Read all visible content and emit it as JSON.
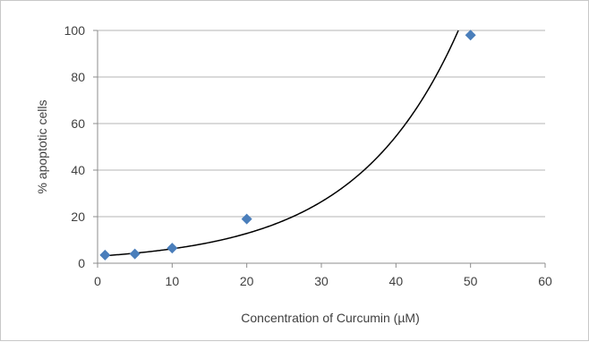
{
  "chart_data": {
    "type": "scatter",
    "title": "",
    "xlabel": "Concentration of Curcumin (µM)",
    "ylabel": "% apoptotic cells",
    "xlim": [
      0,
      60
    ],
    "ylim": [
      0,
      100
    ],
    "xticks": [
      "0",
      "10",
      "20",
      "30",
      "40",
      "50",
      "60"
    ],
    "yticks": [
      "0",
      "20",
      "40",
      "60",
      "80",
      "100"
    ],
    "grid": "horizontal",
    "legend": "none",
    "series": [
      {
        "marker": "diamond",
        "color": "#4a7ebb",
        "x": [
          1,
          5,
          10,
          20,
          50
        ],
        "y": [
          3.5,
          4,
          6.5,
          19,
          98
        ]
      }
    ],
    "trendline": {
      "type": "exponential",
      "color": "#000000",
      "a": 3.0,
      "b": 0.0725,
      "x_range": [
        1,
        50
      ]
    }
  }
}
